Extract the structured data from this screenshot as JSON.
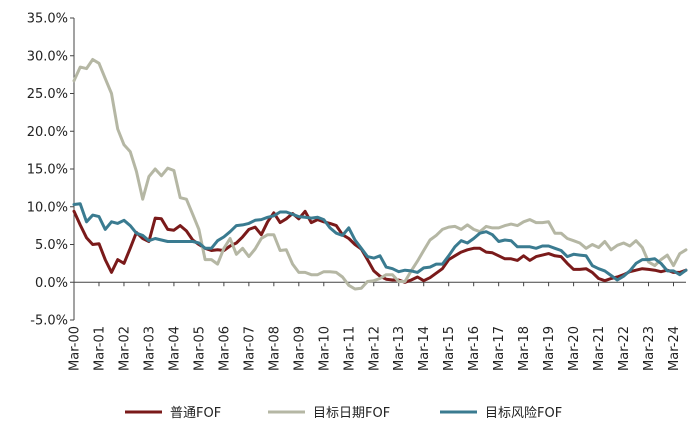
{
  "chart_data": {
    "type": "line",
    "ylim": [
      -5,
      35
    ],
    "y_ticks": [
      "35.0%",
      "30.0%",
      "25.0%",
      "20.0%",
      "15.0%",
      "10.0%",
      "5.0%",
      "0.0%",
      "-5.0%"
    ],
    "y_tick_values": [
      35,
      30,
      25,
      20,
      15,
      10,
      5,
      0,
      -5
    ],
    "x_ticks": [
      "Mar-00",
      "Mar-01",
      "Mar-02",
      "Mar-03",
      "Mar-04",
      "Mar-05",
      "Mar-06",
      "Mar-07",
      "Mar-08",
      "Mar-09",
      "Mar-10",
      "Mar-11",
      "Mar-12",
      "Mar-13",
      "Mar-14",
      "Mar-15",
      "Mar-16",
      "Mar-17",
      "Mar-18",
      "Mar-19",
      "Mar-20",
      "Mar-21",
      "Mar-22",
      "Mar-23",
      "Mar-24"
    ],
    "x_tick_values": [
      2000,
      2001,
      2002,
      2003,
      2004,
      2005,
      2006,
      2007,
      2008,
      2009,
      2010,
      2011,
      2012,
      2013,
      2014,
      2015,
      2016,
      2017,
      2018,
      2019,
      2020,
      2021,
      2022,
      2023,
      2024
    ],
    "xlim": [
      2000,
      2024.5
    ],
    "grid": false,
    "legend_position": "bottom",
    "series": [
      {
        "name": "普通FOF",
        "color": "#7a1a1a",
        "x": [
          2000,
          2000.25,
          2000.5,
          2000.75,
          2001,
          2001.25,
          2001.5,
          2001.75,
          2002,
          2002.25,
          2002.5,
          2002.75,
          2003,
          2003.25,
          2003.5,
          2003.75,
          2004,
          2004.25,
          2004.5,
          2004.75,
          2005,
          2005.25,
          2005.5,
          2005.75,
          2006,
          2006.25,
          2006.5,
          2006.75,
          2007,
          2007.25,
          2007.5,
          2007.75,
          2008,
          2008.25,
          2008.5,
          2008.75,
          2009,
          2009.25,
          2009.5,
          2009.75,
          2010,
          2010.25,
          2010.5,
          2010.75,
          2011,
          2011.25,
          2011.5,
          2011.75,
          2012,
          2012.25,
          2012.5,
          2012.75,
          2013,
          2013.25,
          2013.5,
          2013.75,
          2014,
          2014.25,
          2014.5,
          2014.75,
          2015,
          2015.25,
          2015.5,
          2015.75,
          2016,
          2016.25,
          2016.5,
          2016.75,
          2017,
          2017.25,
          2017.5,
          2017.75,
          2018,
          2018.25,
          2018.5,
          2018.75,
          2019,
          2019.25,
          2019.5,
          2019.75,
          2020,
          2020.25,
          2020.5,
          2020.75,
          2021,
          2021.25,
          2021.5,
          2021.75,
          2022,
          2022.25,
          2022.5,
          2022.75,
          2023,
          2023.25,
          2023.5,
          2023.75,
          2024,
          2024.25,
          2024.5
        ],
        "values": [
          9.4,
          7.6,
          5.9,
          5.0,
          5.1,
          3.0,
          1.3,
          3.0,
          2.5,
          4.5,
          6.6,
          5.8,
          5.4,
          8.5,
          8.4,
          7.0,
          6.9,
          7.5,
          6.8,
          5.6,
          5.0,
          4.5,
          4.2,
          4.3,
          4.2,
          4.8,
          5.2,
          6.0,
          7.0,
          7.3,
          6.3,
          8.0,
          9.2,
          7.9,
          8.4,
          9.1,
          8.4,
          9.4,
          7.9,
          8.3,
          8.0,
          7.8,
          7.5,
          6.3,
          5.8,
          5.0,
          4.4,
          3.0,
          1.5,
          0.8,
          0.4,
          0.3,
          0.3,
          0.0,
          0.3,
          0.7,
          0.2,
          0.6,
          1.2,
          1.8,
          3.0,
          3.5,
          4.0,
          4.3,
          4.5,
          4.5,
          4.0,
          3.9,
          3.5,
          3.1,
          3.1,
          2.9,
          3.5,
          2.9,
          3.4,
          3.6,
          3.8,
          3.5,
          3.4,
          2.5,
          1.7,
          1.7,
          1.8,
          1.3,
          0.5,
          0.2,
          0.5,
          0.7,
          1.0,
          1.4,
          1.6,
          1.8,
          1.7,
          1.6,
          1.4,
          1.6,
          1.3,
          1.3,
          1.6
        ]
      },
      {
        "name": "目标日期FOF",
        "color": "#b5b7a4",
        "x": [
          2000,
          2000.25,
          2000.5,
          2000.75,
          2001,
          2001.25,
          2001.5,
          2001.75,
          2002,
          2002.25,
          2002.5,
          2002.75,
          2003,
          2003.25,
          2003.5,
          2003.75,
          2004,
          2004.25,
          2004.5,
          2004.75,
          2005,
          2005.25,
          2005.5,
          2005.75,
          2006,
          2006.25,
          2006.5,
          2006.75,
          2007,
          2007.25,
          2007.5,
          2007.75,
          2008,
          2008.25,
          2008.5,
          2008.75,
          2009,
          2009.25,
          2009.5,
          2009.75,
          2010,
          2010.25,
          2010.5,
          2010.75,
          2011,
          2011.25,
          2011.5,
          2011.75,
          2012,
          2012.25,
          2012.5,
          2012.75,
          2013,
          2013.25,
          2013.5,
          2013.75,
          2014,
          2014.25,
          2014.5,
          2014.75,
          2015,
          2015.25,
          2015.5,
          2015.75,
          2016,
          2016.25,
          2016.5,
          2016.75,
          2017,
          2017.25,
          2017.5,
          2017.75,
          2018,
          2018.25,
          2018.5,
          2018.75,
          2019,
          2019.25,
          2019.5,
          2019.75,
          2020,
          2020.25,
          2020.5,
          2020.75,
          2021,
          2021.25,
          2021.5,
          2021.75,
          2022,
          2022.25,
          2022.5,
          2022.75,
          2023,
          2023.25,
          2023.5,
          2023.75,
          2024,
          2024.25,
          2024.5
        ],
        "values": [
          26.7,
          28.5,
          28.3,
          29.5,
          29.0,
          27.0,
          25.0,
          20.3,
          18.2,
          17.3,
          14.7,
          11.0,
          14.0,
          15.0,
          14.1,
          15.1,
          14.8,
          11.2,
          11.0,
          9.0,
          7.0,
          3.0,
          3.0,
          2.4,
          4.5,
          5.8,
          3.7,
          4.5,
          3.4,
          4.4,
          5.8,
          6.3,
          6.3,
          4.2,
          4.3,
          2.4,
          1.3,
          1.3,
          1.0,
          1.0,
          1.4,
          1.4,
          1.3,
          0.7,
          -0.4,
          -0.9,
          -0.8,
          0.1,
          0.2,
          0.5,
          1.0,
          1.0,
          0.1,
          0.1,
          1.5,
          2.8,
          4.2,
          5.6,
          6.2,
          7.0,
          7.3,
          7.4,
          7.0,
          7.6,
          7.0,
          6.7,
          7.4,
          7.2,
          7.2,
          7.5,
          7.7,
          7.5,
          8.0,
          8.3,
          7.9,
          7.9,
          8.0,
          6.5,
          6.5,
          5.8,
          5.5,
          5.2,
          4.5,
          5.0,
          4.6,
          5.4,
          4.3,
          4.9,
          5.2,
          4.8,
          5.5,
          4.6,
          2.7,
          2.2,
          3.0,
          3.6,
          2.2,
          3.8,
          4.3
        ]
      },
      {
        "name": "目标风险FOF",
        "color": "#3a7b90",
        "x": [
          2000,
          2000.25,
          2000.5,
          2000.75,
          2001,
          2001.25,
          2001.5,
          2001.75,
          2002,
          2002.25,
          2002.5,
          2002.75,
          2003,
          2003.25,
          2003.5,
          2003.75,
          2004,
          2004.25,
          2004.5,
          2004.75,
          2005,
          2005.25,
          2005.5,
          2005.75,
          2006,
          2006.25,
          2006.5,
          2006.75,
          2007,
          2007.25,
          2007.5,
          2007.75,
          2008,
          2008.25,
          2008.5,
          2008.75,
          2009,
          2009.25,
          2009.5,
          2009.75,
          2010,
          2010.25,
          2010.5,
          2010.75,
          2011,
          2011.25,
          2011.5,
          2011.75,
          2012,
          2012.25,
          2012.5,
          2012.75,
          2013,
          2013.25,
          2013.5,
          2013.75,
          2014,
          2014.25,
          2014.5,
          2014.75,
          2015,
          2015.25,
          2015.5,
          2015.75,
          2016,
          2016.25,
          2016.5,
          2016.75,
          2017,
          2017.25,
          2017.5,
          2017.75,
          2018,
          2018.25,
          2018.5,
          2018.75,
          2019,
          2019.25,
          2019.5,
          2019.75,
          2020,
          2020.25,
          2020.5,
          2020.75,
          2021,
          2021.25,
          2021.5,
          2021.75,
          2022,
          2022.25,
          2022.5,
          2022.75,
          2023,
          2023.25,
          2023.5,
          2023.75,
          2024,
          2024.25,
          2024.5
        ],
        "values": [
          10.3,
          10.4,
          8.0,
          8.9,
          8.7,
          7.0,
          8.0,
          7.8,
          8.2,
          7.5,
          6.5,
          6.2,
          5.5,
          5.8,
          5.6,
          5.4,
          5.4,
          5.4,
          5.4,
          5.4,
          5.2,
          4.5,
          4.5,
          5.5,
          6.0,
          6.7,
          7.5,
          7.6,
          7.8,
          8.2,
          8.3,
          8.6,
          8.8,
          9.3,
          9.3,
          9.0,
          8.7,
          8.6,
          8.5,
          8.6,
          8.3,
          7.2,
          6.5,
          6.2,
          7.2,
          5.6,
          4.5,
          3.4,
          3.2,
          3.5,
          2.0,
          1.8,
          1.4,
          1.6,
          1.5,
          1.3,
          1.9,
          2.0,
          2.4,
          2.4,
          3.5,
          4.7,
          5.5,
          5.2,
          5.8,
          6.5,
          6.7,
          6.3,
          5.4,
          5.6,
          5.5,
          4.7,
          4.7,
          4.7,
          4.5,
          4.8,
          4.8,
          4.5,
          4.2,
          3.4,
          3.7,
          3.6,
          3.5,
          2.2,
          1.8,
          1.5,
          0.9,
          0.3,
          0.8,
          1.5,
          2.5,
          3.0,
          3.0,
          3.1,
          2.5,
          1.5,
          1.5,
          1.0,
          1.6
        ]
      }
    ]
  }
}
